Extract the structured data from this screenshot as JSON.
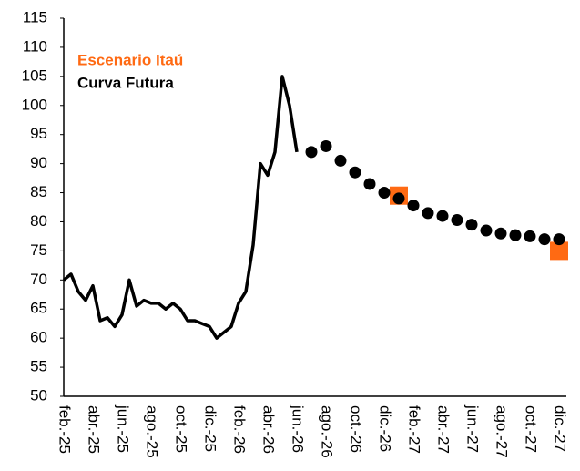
{
  "chart_data": {
    "type": "line",
    "categories": [
      "feb.-25",
      null,
      null,
      null,
      "abr.-25",
      null,
      null,
      null,
      "jun.-25",
      null,
      null,
      null,
      "ago.-25",
      null,
      null,
      null,
      "oct.-25",
      null,
      null,
      null,
      "dic.-25",
      null,
      null,
      null,
      "feb.-26",
      null,
      null,
      null,
      "abr.-26",
      null,
      null,
      null,
      "jun.-26",
      null,
      null,
      null,
      "ago.-26",
      null,
      null,
      null,
      "oct.-26",
      null,
      null,
      null,
      "dic.-26",
      null,
      null,
      null,
      "feb.-27",
      null,
      null,
      null,
      "abr.-27",
      null,
      null,
      null,
      "jun.-27",
      null,
      null,
      null,
      "ago.-27",
      null,
      null,
      null,
      "oct.-27",
      null,
      null,
      null,
      "dic.-27"
    ],
    "series": [
      {
        "color": "#000000",
        "values": [
          70,
          71,
          68,
          66.5,
          69,
          63,
          63.5,
          62,
          64,
          70,
          65.5,
          66.5,
          66,
          66,
          65,
          66,
          65,
          63,
          63,
          62.5,
          62,
          60,
          61,
          62,
          66,
          68,
          76,
          90,
          88,
          92,
          105,
          100,
          92,
          null,
          null,
          null,
          null,
          null,
          null,
          null,
          null,
          null,
          null,
          null,
          null,
          null,
          null,
          null,
          null,
          null,
          null,
          null,
          null,
          null,
          null,
          null,
          null,
          null,
          null,
          null,
          null,
          null,
          null,
          null,
          null,
          null,
          null,
          null,
          null
        ]
      },
      {
        "name": "Escenario Itaú",
        "color": "#ff6a13",
        "marker": "square",
        "values": [
          null,
          null,
          null,
          null,
          null,
          null,
          null,
          null,
          null,
          null,
          null,
          null,
          null,
          null,
          null,
          null,
          null,
          null,
          null,
          null,
          null,
          null,
          null,
          null,
          null,
          null,
          null,
          null,
          null,
          null,
          null,
          null,
          null,
          null,
          null,
          null,
          null,
          null,
          null,
          null,
          null,
          null,
          null,
          null,
          null,
          null,
          84.5,
          null,
          null,
          null,
          null,
          null,
          null,
          null,
          null,
          null,
          null,
          null,
          null,
          null,
          null,
          null,
          null,
          null,
          null,
          null,
          null,
          null,
          75
        ]
      },
      {
        "name": "Curva Futura",
        "color": "#000000",
        "marker": "circle",
        "values": [
          null,
          null,
          null,
          null,
          null,
          null,
          null,
          null,
          null,
          null,
          null,
          null,
          null,
          null,
          null,
          null,
          null,
          null,
          null,
          null,
          null,
          null,
          null,
          null,
          null,
          null,
          null,
          null,
          null,
          null,
          null,
          null,
          null,
          null,
          92,
          null,
          93,
          null,
          90.5,
          null,
          88.5,
          null,
          86.5,
          null,
          85,
          null,
          84,
          null,
          82.8,
          null,
          81.5,
          null,
          81,
          null,
          80.3,
          null,
          79.5,
          null,
          78.5,
          null,
          78,
          null,
          77.7,
          null,
          77.5,
          null,
          77,
          null,
          77
        ]
      }
    ],
    "ylim": [
      50,
      115
    ],
    "yticks": [
      50,
      55,
      60,
      65,
      70,
      75,
      80,
      85,
      90,
      95,
      100,
      105,
      110,
      115
    ],
    "grid": false
  }
}
